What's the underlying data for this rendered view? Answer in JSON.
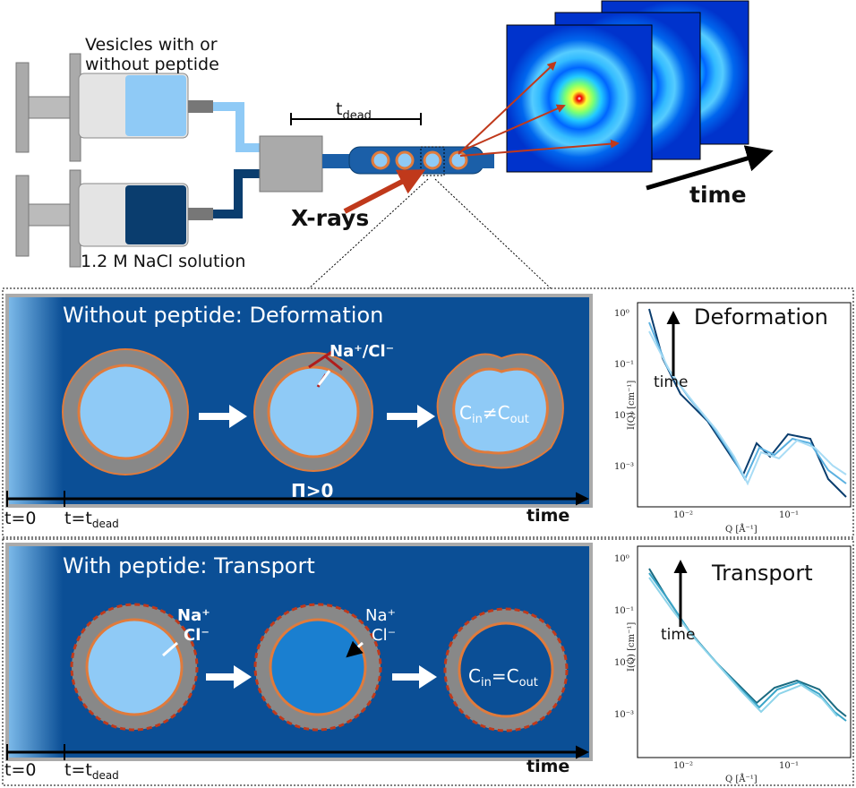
{
  "top": {
    "syringe_top": [
      "Vesicles with or",
      "without peptide"
    ],
    "syringe_bottom": "1.2 M NaCl solution",
    "dead_time": {
      "base": "t",
      "sub": "dead"
    },
    "xrays": "X-rays",
    "time": "time"
  },
  "panels": [
    {
      "title": "Without peptide: Deformation",
      "ions": {
        "na": "Na⁺",
        "sep": "/",
        "cl": "Cl⁻"
      },
      "pressure": "Π>0",
      "concentration": {
        "c1": "C",
        "s1": "in",
        "op": "≠",
        "c2": "C",
        "s2": "out"
      },
      "timeline": {
        "t0": "t=0",
        "tdead": {
          "base": "t=t",
          "sub": "dead"
        },
        "time": "time"
      },
      "plot": {
        "label": "Deformation",
        "arrow": "time",
        "yticks": [
          "10⁰",
          "10⁻¹",
          "10⁻²",
          "10⁻³"
        ],
        "xticks": [
          "10⁻²",
          "10⁻¹"
        ],
        "ylabel": "I(Q) [cm⁻¹]",
        "xlabel": "Q [Å⁻¹]"
      }
    },
    {
      "title": "With peptide: Transport",
      "ions": {
        "na": "Na⁺",
        "cl": "Cl⁻",
        "na2": "Na⁺",
        "cl2": "Cl⁻"
      },
      "concentration": {
        "c1": "C",
        "s1": "in",
        "op": "=",
        "c2": "C",
        "s2": "out"
      },
      "timeline": {
        "t0": "t=0",
        "tdead": {
          "base": "t=t",
          "sub": "dead"
        },
        "time": "time"
      },
      "plot": {
        "label": "Transport",
        "arrow": "time",
        "yticks": [
          "10⁰",
          "10⁻¹",
          "10⁻²",
          "10⁻³"
        ],
        "xticks": [
          "10⁻²",
          "10⁻¹"
        ],
        "ylabel": "I(Q) [cm⁻¹]",
        "xlabel": "Q [Å⁻¹]"
      }
    }
  ]
}
